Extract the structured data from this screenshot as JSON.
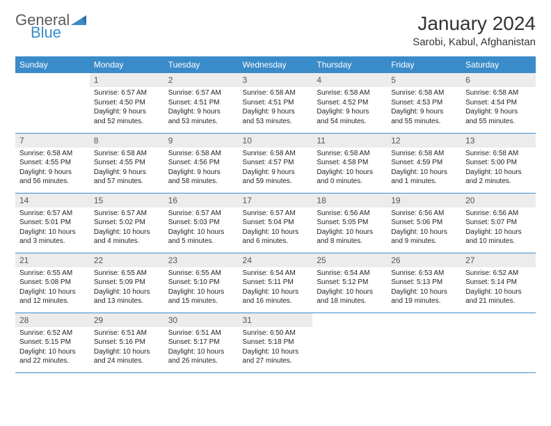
{
  "logo": {
    "word1": "General",
    "word2": "Blue",
    "color1": "#5a5a5a",
    "color2": "#3a8bc9"
  },
  "title": "January 2024",
  "location": "Sarobi, Kabul, Afghanistan",
  "header_bg": "#3a8bc9",
  "header_fg": "#ffffff",
  "daynum_bg": "#ececec",
  "border_color": "#3a8bc9",
  "weekdays": [
    "Sunday",
    "Monday",
    "Tuesday",
    "Wednesday",
    "Thursday",
    "Friday",
    "Saturday"
  ],
  "first_weekday_offset": 1,
  "days": [
    {
      "n": 1,
      "sr": "6:57 AM",
      "ss": "4:50 PM",
      "dh": 9,
      "dm": 52
    },
    {
      "n": 2,
      "sr": "6:57 AM",
      "ss": "4:51 PM",
      "dh": 9,
      "dm": 53
    },
    {
      "n": 3,
      "sr": "6:58 AM",
      "ss": "4:51 PM",
      "dh": 9,
      "dm": 53
    },
    {
      "n": 4,
      "sr": "6:58 AM",
      "ss": "4:52 PM",
      "dh": 9,
      "dm": 54
    },
    {
      "n": 5,
      "sr": "6:58 AM",
      "ss": "4:53 PM",
      "dh": 9,
      "dm": 55
    },
    {
      "n": 6,
      "sr": "6:58 AM",
      "ss": "4:54 PM",
      "dh": 9,
      "dm": 55
    },
    {
      "n": 7,
      "sr": "6:58 AM",
      "ss": "4:55 PM",
      "dh": 9,
      "dm": 56
    },
    {
      "n": 8,
      "sr": "6:58 AM",
      "ss": "4:55 PM",
      "dh": 9,
      "dm": 57
    },
    {
      "n": 9,
      "sr": "6:58 AM",
      "ss": "4:56 PM",
      "dh": 9,
      "dm": 58
    },
    {
      "n": 10,
      "sr": "6:58 AM",
      "ss": "4:57 PM",
      "dh": 9,
      "dm": 59
    },
    {
      "n": 11,
      "sr": "6:58 AM",
      "ss": "4:58 PM",
      "dh": 10,
      "dm": 0
    },
    {
      "n": 12,
      "sr": "6:58 AM",
      "ss": "4:59 PM",
      "dh": 10,
      "dm": 1
    },
    {
      "n": 13,
      "sr": "6:58 AM",
      "ss": "5:00 PM",
      "dh": 10,
      "dm": 2
    },
    {
      "n": 14,
      "sr": "6:57 AM",
      "ss": "5:01 PM",
      "dh": 10,
      "dm": 3
    },
    {
      "n": 15,
      "sr": "6:57 AM",
      "ss": "5:02 PM",
      "dh": 10,
      "dm": 4
    },
    {
      "n": 16,
      "sr": "6:57 AM",
      "ss": "5:03 PM",
      "dh": 10,
      "dm": 5
    },
    {
      "n": 17,
      "sr": "6:57 AM",
      "ss": "5:04 PM",
      "dh": 10,
      "dm": 6
    },
    {
      "n": 18,
      "sr": "6:56 AM",
      "ss": "5:05 PM",
      "dh": 10,
      "dm": 8
    },
    {
      "n": 19,
      "sr": "6:56 AM",
      "ss": "5:06 PM",
      "dh": 10,
      "dm": 9
    },
    {
      "n": 20,
      "sr": "6:56 AM",
      "ss": "5:07 PM",
      "dh": 10,
      "dm": 10
    },
    {
      "n": 21,
      "sr": "6:55 AM",
      "ss": "5:08 PM",
      "dh": 10,
      "dm": 12
    },
    {
      "n": 22,
      "sr": "6:55 AM",
      "ss": "5:09 PM",
      "dh": 10,
      "dm": 13
    },
    {
      "n": 23,
      "sr": "6:55 AM",
      "ss": "5:10 PM",
      "dh": 10,
      "dm": 15
    },
    {
      "n": 24,
      "sr": "6:54 AM",
      "ss": "5:11 PM",
      "dh": 10,
      "dm": 16
    },
    {
      "n": 25,
      "sr": "6:54 AM",
      "ss": "5:12 PM",
      "dh": 10,
      "dm": 18
    },
    {
      "n": 26,
      "sr": "6:53 AM",
      "ss": "5:13 PM",
      "dh": 10,
      "dm": 19
    },
    {
      "n": 27,
      "sr": "6:52 AM",
      "ss": "5:14 PM",
      "dh": 10,
      "dm": 21
    },
    {
      "n": 28,
      "sr": "6:52 AM",
      "ss": "5:15 PM",
      "dh": 10,
      "dm": 22
    },
    {
      "n": 29,
      "sr": "6:51 AM",
      "ss": "5:16 PM",
      "dh": 10,
      "dm": 24
    },
    {
      "n": 30,
      "sr": "6:51 AM",
      "ss": "5:17 PM",
      "dh": 10,
      "dm": 26
    },
    {
      "n": 31,
      "sr": "6:50 AM",
      "ss": "5:18 PM",
      "dh": 10,
      "dm": 27
    }
  ],
  "labels": {
    "sunrise": "Sunrise:",
    "sunset": "Sunset:",
    "daylight": "Daylight:",
    "hours": "hours",
    "and": "and",
    "minutes": "minutes."
  }
}
